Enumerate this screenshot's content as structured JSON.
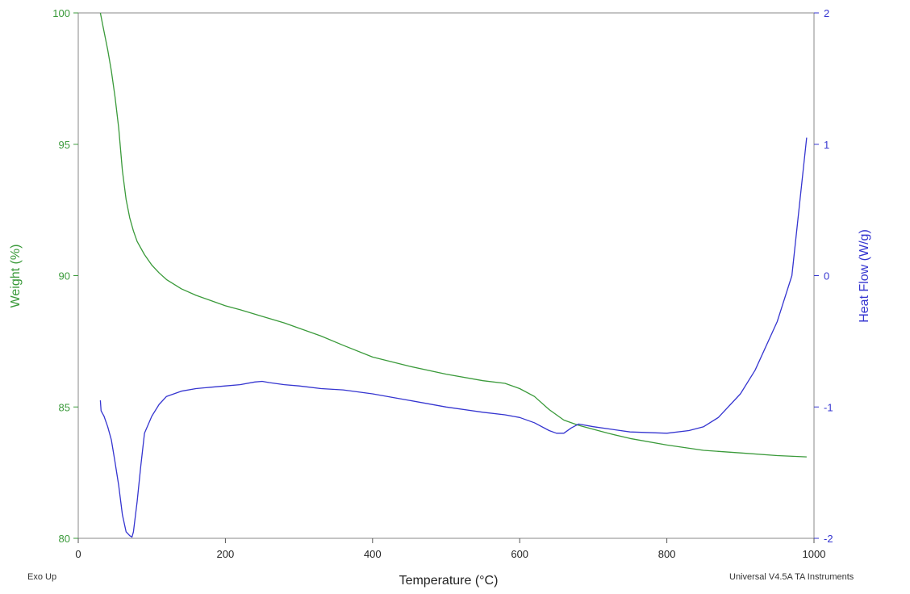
{
  "chart_data": {
    "type": "line",
    "xlabel": "Temperature (°C)",
    "xlim": [
      0,
      1000
    ],
    "x_ticks": [
      0,
      200,
      400,
      600,
      800,
      1000
    ],
    "y_left": {
      "label": "Weight (%)",
      "lim": [
        80,
        100
      ],
      "ticks": [
        80,
        85,
        90,
        95,
        100
      ],
      "color": "#3a9a3a"
    },
    "y_right": {
      "label": "Heat Flow (W/g)",
      "lim": [
        -2,
        2
      ],
      "ticks": [
        -2,
        -1,
        0,
        1,
        2
      ],
      "color": "#3535d0"
    },
    "grid": false,
    "series": [
      {
        "axis": "left",
        "color": "#3a9a3a",
        "x": [
          30,
          35,
          40,
          45,
          50,
          55,
          60,
          65,
          70,
          75,
          80,
          90,
          100,
          110,
          120,
          140,
          160,
          180,
          200,
          220,
          250,
          280,
          300,
          330,
          360,
          400,
          450,
          500,
          550,
          580,
          600,
          620,
          640,
          660,
          680,
          700,
          720,
          750,
          800,
          850,
          900,
          950,
          990
        ],
        "values": [
          100,
          99.3,
          98.6,
          97.8,
          96.8,
          95.6,
          94.0,
          92.9,
          92.2,
          91.7,
          91.3,
          90.8,
          90.4,
          90.1,
          89.85,
          89.5,
          89.25,
          89.05,
          88.85,
          88.7,
          88.45,
          88.2,
          88.0,
          87.7,
          87.35,
          86.9,
          86.55,
          86.25,
          86.0,
          85.9,
          85.7,
          85.4,
          84.9,
          84.5,
          84.3,
          84.15,
          84.0,
          83.8,
          83.55,
          83.35,
          83.25,
          83.15,
          83.1
        ]
      },
      {
        "axis": "right",
        "color": "#3535d0",
        "x": [
          30,
          31,
          35,
          40,
          45,
          50,
          55,
          60,
          65,
          70,
          73,
          75,
          80,
          85,
          90,
          100,
          110,
          120,
          140,
          160,
          180,
          200,
          220,
          240,
          250,
          260,
          280,
          300,
          330,
          360,
          400,
          450,
          500,
          550,
          580,
          600,
          620,
          640,
          650,
          660,
          670,
          680,
          700,
          750,
          800,
          830,
          850,
          870,
          900,
          920,
          950,
          970,
          990
        ],
        "values": [
          -0.95,
          -1.03,
          -1.07,
          -1.15,
          -1.25,
          -1.42,
          -1.6,
          -1.82,
          -1.95,
          -1.98,
          -1.99,
          -1.95,
          -1.72,
          -1.45,
          -1.2,
          -1.07,
          -0.98,
          -0.92,
          -0.88,
          -0.86,
          -0.85,
          -0.84,
          -0.83,
          -0.81,
          -0.805,
          -0.815,
          -0.83,
          -0.84,
          -0.86,
          -0.87,
          -0.9,
          -0.95,
          -1.0,
          -1.04,
          -1.06,
          -1.08,
          -1.12,
          -1.18,
          -1.2,
          -1.2,
          -1.16,
          -1.13,
          -1.15,
          -1.19,
          -1.2,
          -1.18,
          -1.15,
          -1.08,
          -0.9,
          -0.72,
          -0.35,
          -0.0,
          1.05
        ]
      }
    ]
  },
  "footer": {
    "left_note": "Exo Up",
    "right_note": "Universal V4.5A TA Instruments"
  }
}
